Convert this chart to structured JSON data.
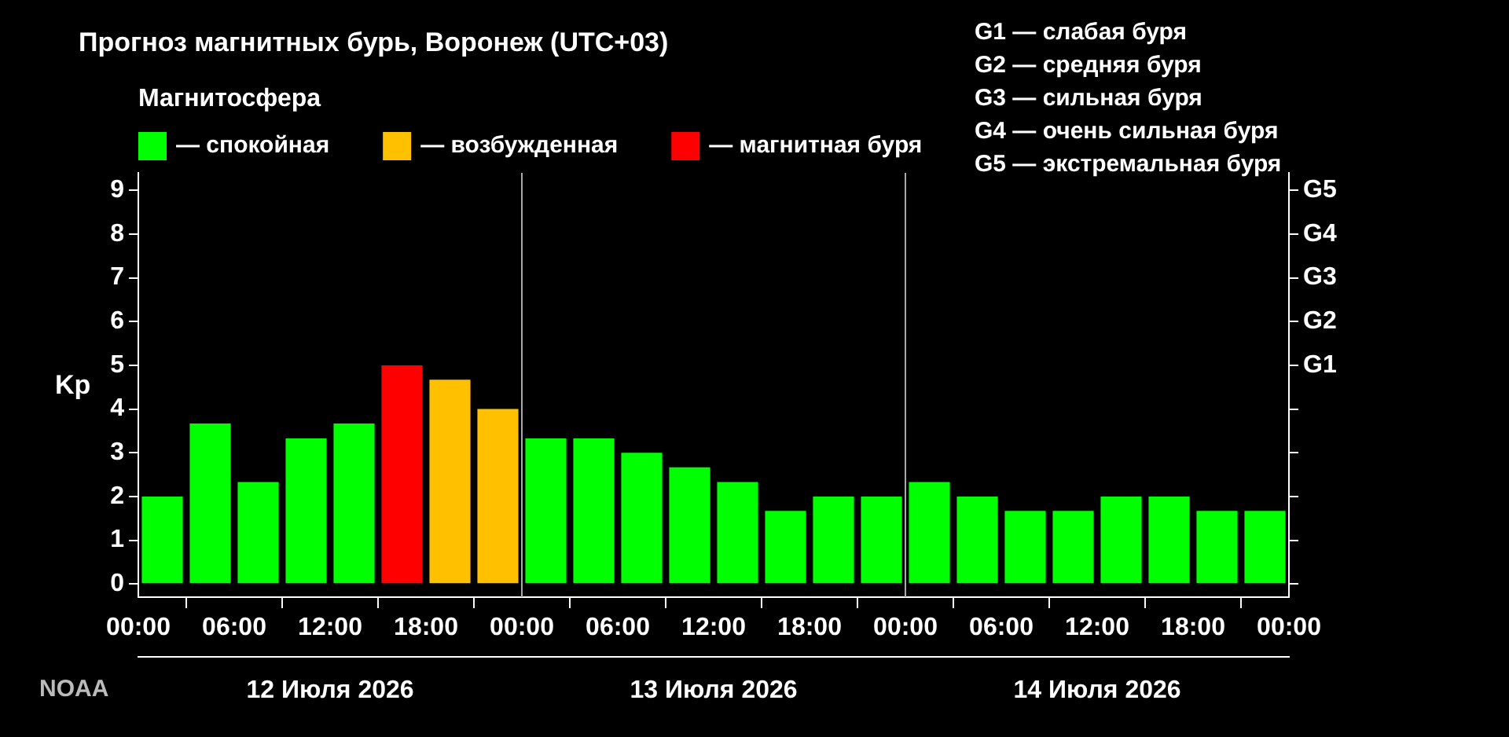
{
  "chart_data": {
    "type": "bar",
    "title": "Прогноз магнитных бурь, Воронеж (UTC+03)",
    "legend_title": "Магнитосфера",
    "ylabel": "Kp",
    "stacked": true,
    "legend": "top left",
    "grid": false,
    "x": [
      "2026-07-12T01:30",
      "2026-07-12T04:30",
      "2026-07-12T07:30",
      "2026-07-12T10:30",
      "2026-07-12T13:30",
      "2026-07-12T16:30",
      "2026-07-12T19:30",
      "2026-07-12T22:30",
      "2026-07-13T01:30",
      "2026-07-13T04:30",
      "2026-07-13T07:30",
      "2026-07-13T10:30",
      "2026-07-13T13:30",
      "2026-07-13T16:30",
      "2026-07-13T19:30",
      "2026-07-13T22:30",
      "2026-07-14T01:30",
      "2026-07-14T04:30",
      "2026-07-14T07:30",
      "2026-07-14T10:30",
      "2026-07-14T13:30",
      "2026-07-14T16:30",
      "2026-07-14T19:30",
      "2026-07-14T22:30"
    ],
    "series": [
      {
        "name": "— спокойная",
        "color": "#00ff00",
        "values": [
          2,
          3.67,
          2.33,
          3.33,
          3.67,
          null,
          null,
          null,
          3.33,
          3.33,
          3,
          2.67,
          2.33,
          1.67,
          2,
          2,
          2.33,
          2,
          1.67,
          1.67,
          2,
          2,
          1.67,
          1.67
        ]
      },
      {
        "name": "— возбужденная",
        "color": "#ffc000",
        "values": [
          null,
          null,
          null,
          null,
          null,
          null,
          4.67,
          4,
          null,
          null,
          null,
          null,
          null,
          null,
          null,
          null,
          null,
          null,
          null,
          null,
          null,
          null,
          null,
          null
        ]
      },
      {
        "name": "— магнитная буря",
        "color": "#ff0000",
        "values": [
          null,
          null,
          null,
          null,
          null,
          5,
          null,
          null,
          null,
          null,
          null,
          null,
          null,
          null,
          null,
          null,
          null,
          null,
          null,
          null,
          null,
          null,
          null,
          null
        ]
      }
    ],
    "xlim": [
      "2026-07-12T00:00",
      "2026-07-15T00:00"
    ],
    "xticks": [
      {
        "value": "2026-07-12T00:00",
        "label": "00:00"
      },
      {
        "value": "2026-07-12T06:00",
        "label": "06:00"
      },
      {
        "value": "2026-07-12T12:00",
        "label": "12:00"
      },
      {
        "value": "2026-07-12T18:00",
        "label": "18:00"
      },
      {
        "value": "2026-07-13T00:00",
        "label": "00:00"
      },
      {
        "value": "2026-07-13T06:00",
        "label": "06:00"
      },
      {
        "value": "2026-07-13T12:00",
        "label": "12:00"
      },
      {
        "value": "2026-07-13T18:00",
        "label": "18:00"
      },
      {
        "value": "2026-07-14T00:00",
        "label": "00:00"
      },
      {
        "value": "2026-07-14T06:00",
        "label": "06:00"
      },
      {
        "value": "2026-07-14T12:00",
        "label": "12:00"
      },
      {
        "value": "2026-07-14T18:00",
        "label": "18:00"
      },
      {
        "value": "2026-07-15T00:00",
        "label": "00:00"
      }
    ],
    "x2lim": [
      "2026-07-12T00:00",
      "2026-07-15T00:00"
    ],
    "x2ticks": [
      {
        "value": "2026-07-12T12:00",
        "label": "12 Июля 2026"
      },
      {
        "value": "2026-07-13T12:00",
        "label": "13 Июля 2026"
      },
      {
        "value": "2026-07-14T12:00",
        "label": "14 Июля 2026"
      }
    ],
    "ylim": [
      -0.3,
      9.4
    ],
    "yticks": [
      0,
      1,
      2,
      3,
      4,
      5,
      6,
      7,
      8,
      9
    ],
    "y2_categories": [
      "G5",
      "G4",
      "G3",
      "G2",
      "G1",
      null,
      null,
      null,
      null,
      null
    ],
    "ref_lines": [
      {
        "axis": "x",
        "value": "2026-07-13T00:00",
        "color": "#aaaaaa"
      },
      {
        "axis": "x",
        "value": "2026-07-14T00:00",
        "color": "#aaaaaa"
      }
    ],
    "annotations": [
      "G1 — слабая буря",
      "G2 — средняя буря",
      "G3 — сильная буря",
      "G4 — очень сильная буря",
      "G5 — экстремальная буря",
      "NOAA"
    ]
  }
}
